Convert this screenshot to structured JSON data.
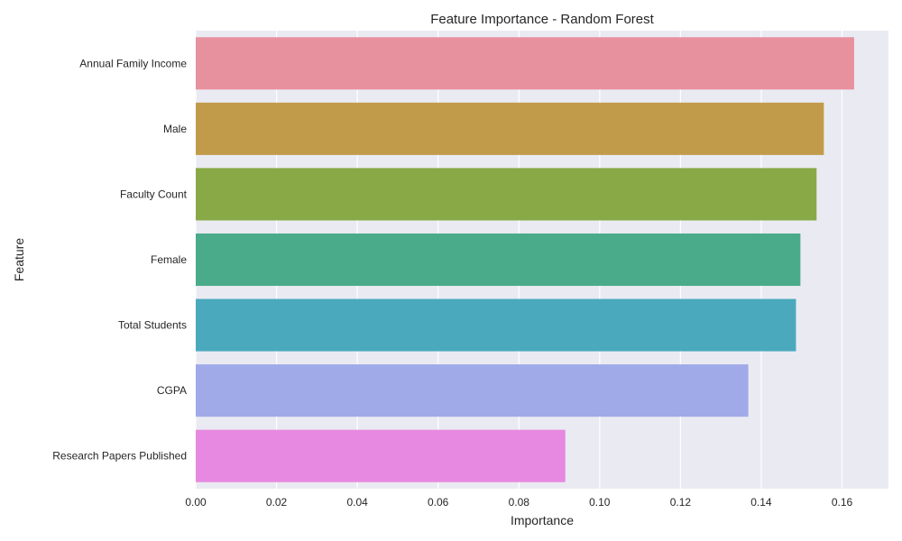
{
  "chart_data": {
    "type": "bar",
    "orientation": "horizontal",
    "title": "Feature Importance - Random Forest",
    "xlabel": "Importance",
    "ylabel": "Feature",
    "categories": [
      "Annual Family Income",
      "Male",
      "Faculty Count",
      "Female",
      "Total Students",
      "CGPA",
      "Research Papers Published"
    ],
    "values": [
      0.163,
      0.1555,
      0.1537,
      0.1497,
      0.1486,
      0.1368,
      0.0915
    ],
    "colors": [
      "#e8919e",
      "#c29b4a",
      "#88a946",
      "#4aab8a",
      "#4aa9bd",
      "#a0aae9",
      "#e789e0"
    ],
    "xlim": [
      0,
      0.1715
    ],
    "xticks": [
      "0.00",
      "0.02",
      "0.04",
      "0.06",
      "0.08",
      "0.10",
      "0.12",
      "0.14",
      "0.16"
    ],
    "grid": true,
    "background": "#eaeaf2"
  }
}
